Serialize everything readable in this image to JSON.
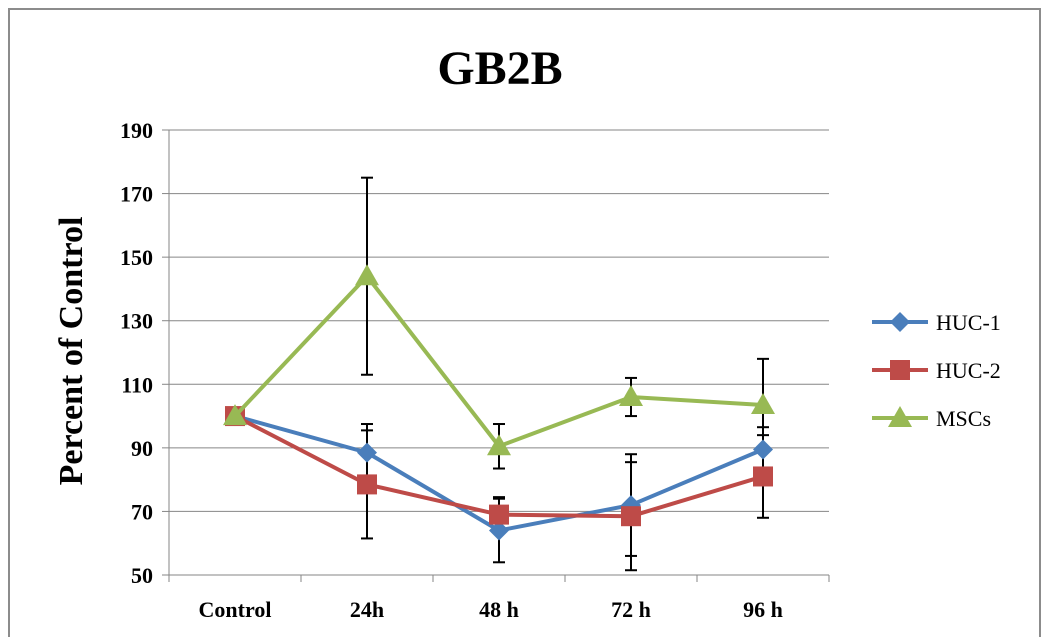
{
  "chart_data": {
    "type": "line",
    "title": "GB2B",
    "xlabel": "",
    "ylabel": "Percent of Control",
    "categories": [
      "Control",
      "24h",
      "48 h",
      "72 h",
      "96 h"
    ],
    "ylim": [
      50,
      190
    ],
    "yticks": [
      50,
      70,
      90,
      110,
      130,
      150,
      170,
      190
    ],
    "grid": true,
    "legend_position": "right",
    "series": [
      {
        "name": "HUC-1",
        "color": "#4a7ebb",
        "marker": "diamond",
        "values": [
          100,
          88.5,
          64,
          72,
          89.5
        ],
        "error": [
          0,
          9,
          10,
          16,
          7
        ]
      },
      {
        "name": "HUC-2",
        "color": "#be4b48",
        "marker": "square",
        "values": [
          100,
          78.5,
          69,
          68.5,
          81
        ],
        "error": [
          0,
          17,
          5.5,
          17,
          13
        ]
      },
      {
        "name": "MSCs",
        "color": "#98b954",
        "marker": "triangle",
        "values": [
          100,
          144,
          90.5,
          106,
          103.5
        ],
        "error": [
          0,
          31,
          7,
          6,
          14.5
        ]
      }
    ]
  }
}
